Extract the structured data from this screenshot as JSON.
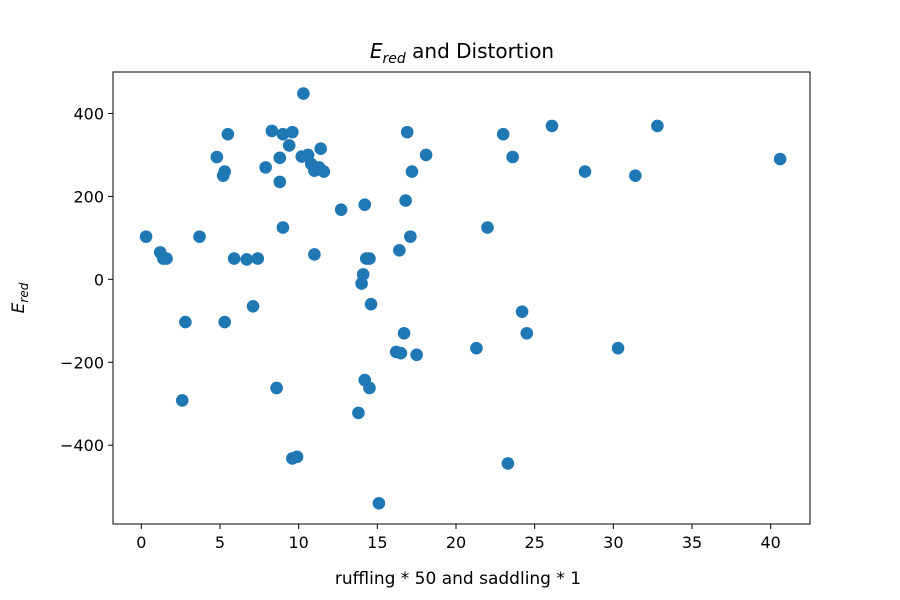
{
  "chart_data": {
    "type": "scatter",
    "title_main": "E",
    "title_sub": "red",
    "title_rest": " and Distortion",
    "xlabel": "ruffling * 50 and saddling * 1",
    "ylabel_main": "E",
    "ylabel_sub": "red",
    "xlim": [
      -1.8,
      42.5
    ],
    "ylim": [
      -590,
      500
    ],
    "xticks": [
      0,
      5,
      10,
      15,
      20,
      25,
      30,
      35,
      40
    ],
    "yticks": [
      -400,
      -200,
      0,
      200,
      400
    ],
    "ytick_labels": [
      "−400",
      "−200",
      "0",
      "200",
      "400"
    ],
    "point_color": "#1f77b4",
    "points": [
      [
        0.3,
        103
      ],
      [
        1.2,
        65
      ],
      [
        1.4,
        50
      ],
      [
        1.6,
        50
      ],
      [
        2.6,
        -292
      ],
      [
        2.8,
        -103
      ],
      [
        3.7,
        103
      ],
      [
        4.8,
        295
      ],
      [
        5.2,
        250
      ],
      [
        5.3,
        260
      ],
      [
        5.3,
        -103
      ],
      [
        5.5,
        350
      ],
      [
        5.9,
        50
      ],
      [
        6.7,
        48
      ],
      [
        7.1,
        -65
      ],
      [
        7.4,
        50
      ],
      [
        7.9,
        270
      ],
      [
        8.3,
        358
      ],
      [
        8.6,
        -262
      ],
      [
        8.8,
        235
      ],
      [
        8.8,
        293
      ],
      [
        9.0,
        350
      ],
      [
        9.0,
        125
      ],
      [
        9.4,
        323
      ],
      [
        9.6,
        355
      ],
      [
        9.6,
        -432
      ],
      [
        9.9,
        -428
      ],
      [
        10.2,
        296
      ],
      [
        10.3,
        448
      ],
      [
        10.6,
        300
      ],
      [
        10.8,
        278
      ],
      [
        11.0,
        262
      ],
      [
        11.0,
        60
      ],
      [
        11.3,
        270
      ],
      [
        11.4,
        315
      ],
      [
        11.6,
        260
      ],
      [
        12.7,
        168
      ],
      [
        13.8,
        -322
      ],
      [
        14.0,
        -10
      ],
      [
        14.1,
        12
      ],
      [
        14.2,
        -243
      ],
      [
        14.2,
        180
      ],
      [
        14.3,
        50
      ],
      [
        14.5,
        -262
      ],
      [
        14.5,
        50
      ],
      [
        14.6,
        -60
      ],
      [
        15.1,
        -540
      ],
      [
        16.2,
        -175
      ],
      [
        16.4,
        70
      ],
      [
        16.5,
        -178
      ],
      [
        16.7,
        -130
      ],
      [
        16.8,
        190
      ],
      [
        16.9,
        355
      ],
      [
        17.1,
        103
      ],
      [
        17.2,
        260
      ],
      [
        17.5,
        -182
      ],
      [
        18.1,
        300
      ],
      [
        21.3,
        -166
      ],
      [
        22.0,
        125
      ],
      [
        23.0,
        350
      ],
      [
        23.3,
        -444
      ],
      [
        23.6,
        295
      ],
      [
        24.2,
        -78
      ],
      [
        24.5,
        -130
      ],
      [
        26.1,
        370
      ],
      [
        28.2,
        260
      ],
      [
        30.3,
        -166
      ],
      [
        31.4,
        250
      ],
      [
        32.8,
        370
      ],
      [
        40.6,
        290
      ]
    ]
  }
}
